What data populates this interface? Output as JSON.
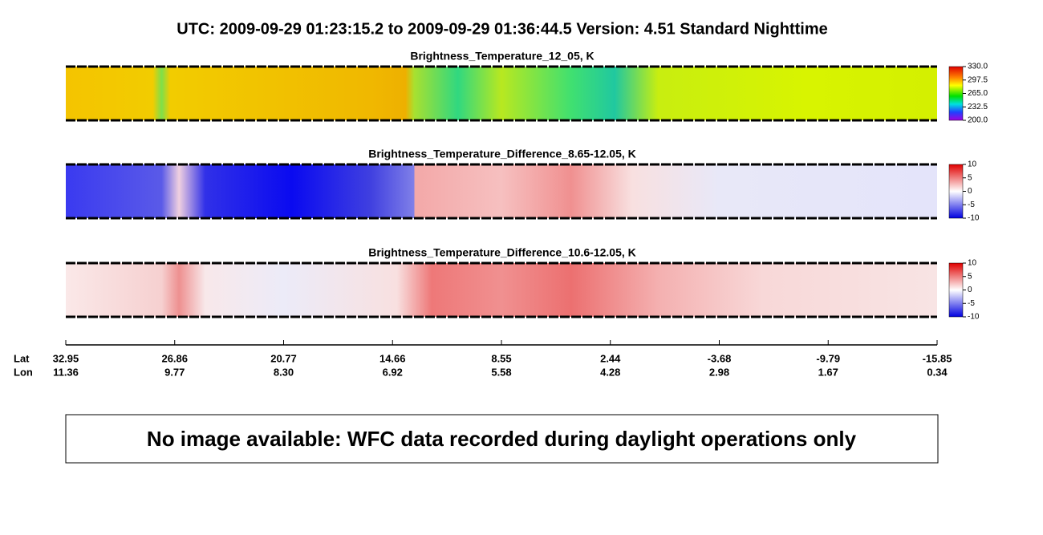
{
  "title": "UTC:  2009-09-29   01:23:15.2  to  2009-09-29   01:36:44.5    Version: 4.51  Standard Nighttime",
  "panels": [
    {
      "title": "Brightness_Temperature_12_05, K",
      "colorbar": [
        "330.0",
        "297.5",
        "265.0",
        "232.5",
        "200.0"
      ]
    },
    {
      "title": "Brightness_Temperature_Difference_8.65-12.05, K",
      "colorbar": [
        "10",
        "5",
        "0",
        "-5",
        "-10"
      ]
    },
    {
      "title": "Brightness_Temperature_Difference_10.6-12.05, K",
      "colorbar": [
        "10",
        "5",
        "0",
        "-5",
        "-10"
      ]
    }
  ],
  "axis": {
    "lat_label": "Lat",
    "lon_label": "Lon",
    "lat": [
      "32.95",
      "26.86",
      "20.77",
      "14.66",
      "8.55",
      "2.44",
      "-3.68",
      "-9.79",
      "-15.85"
    ],
    "lon": [
      "11.36",
      "9.77",
      "8.30",
      "6.92",
      "5.58",
      "4.28",
      "2.98",
      "1.67",
      "0.34"
    ]
  },
  "notice": "No image available: WFC data recorded during daylight operations only"
}
